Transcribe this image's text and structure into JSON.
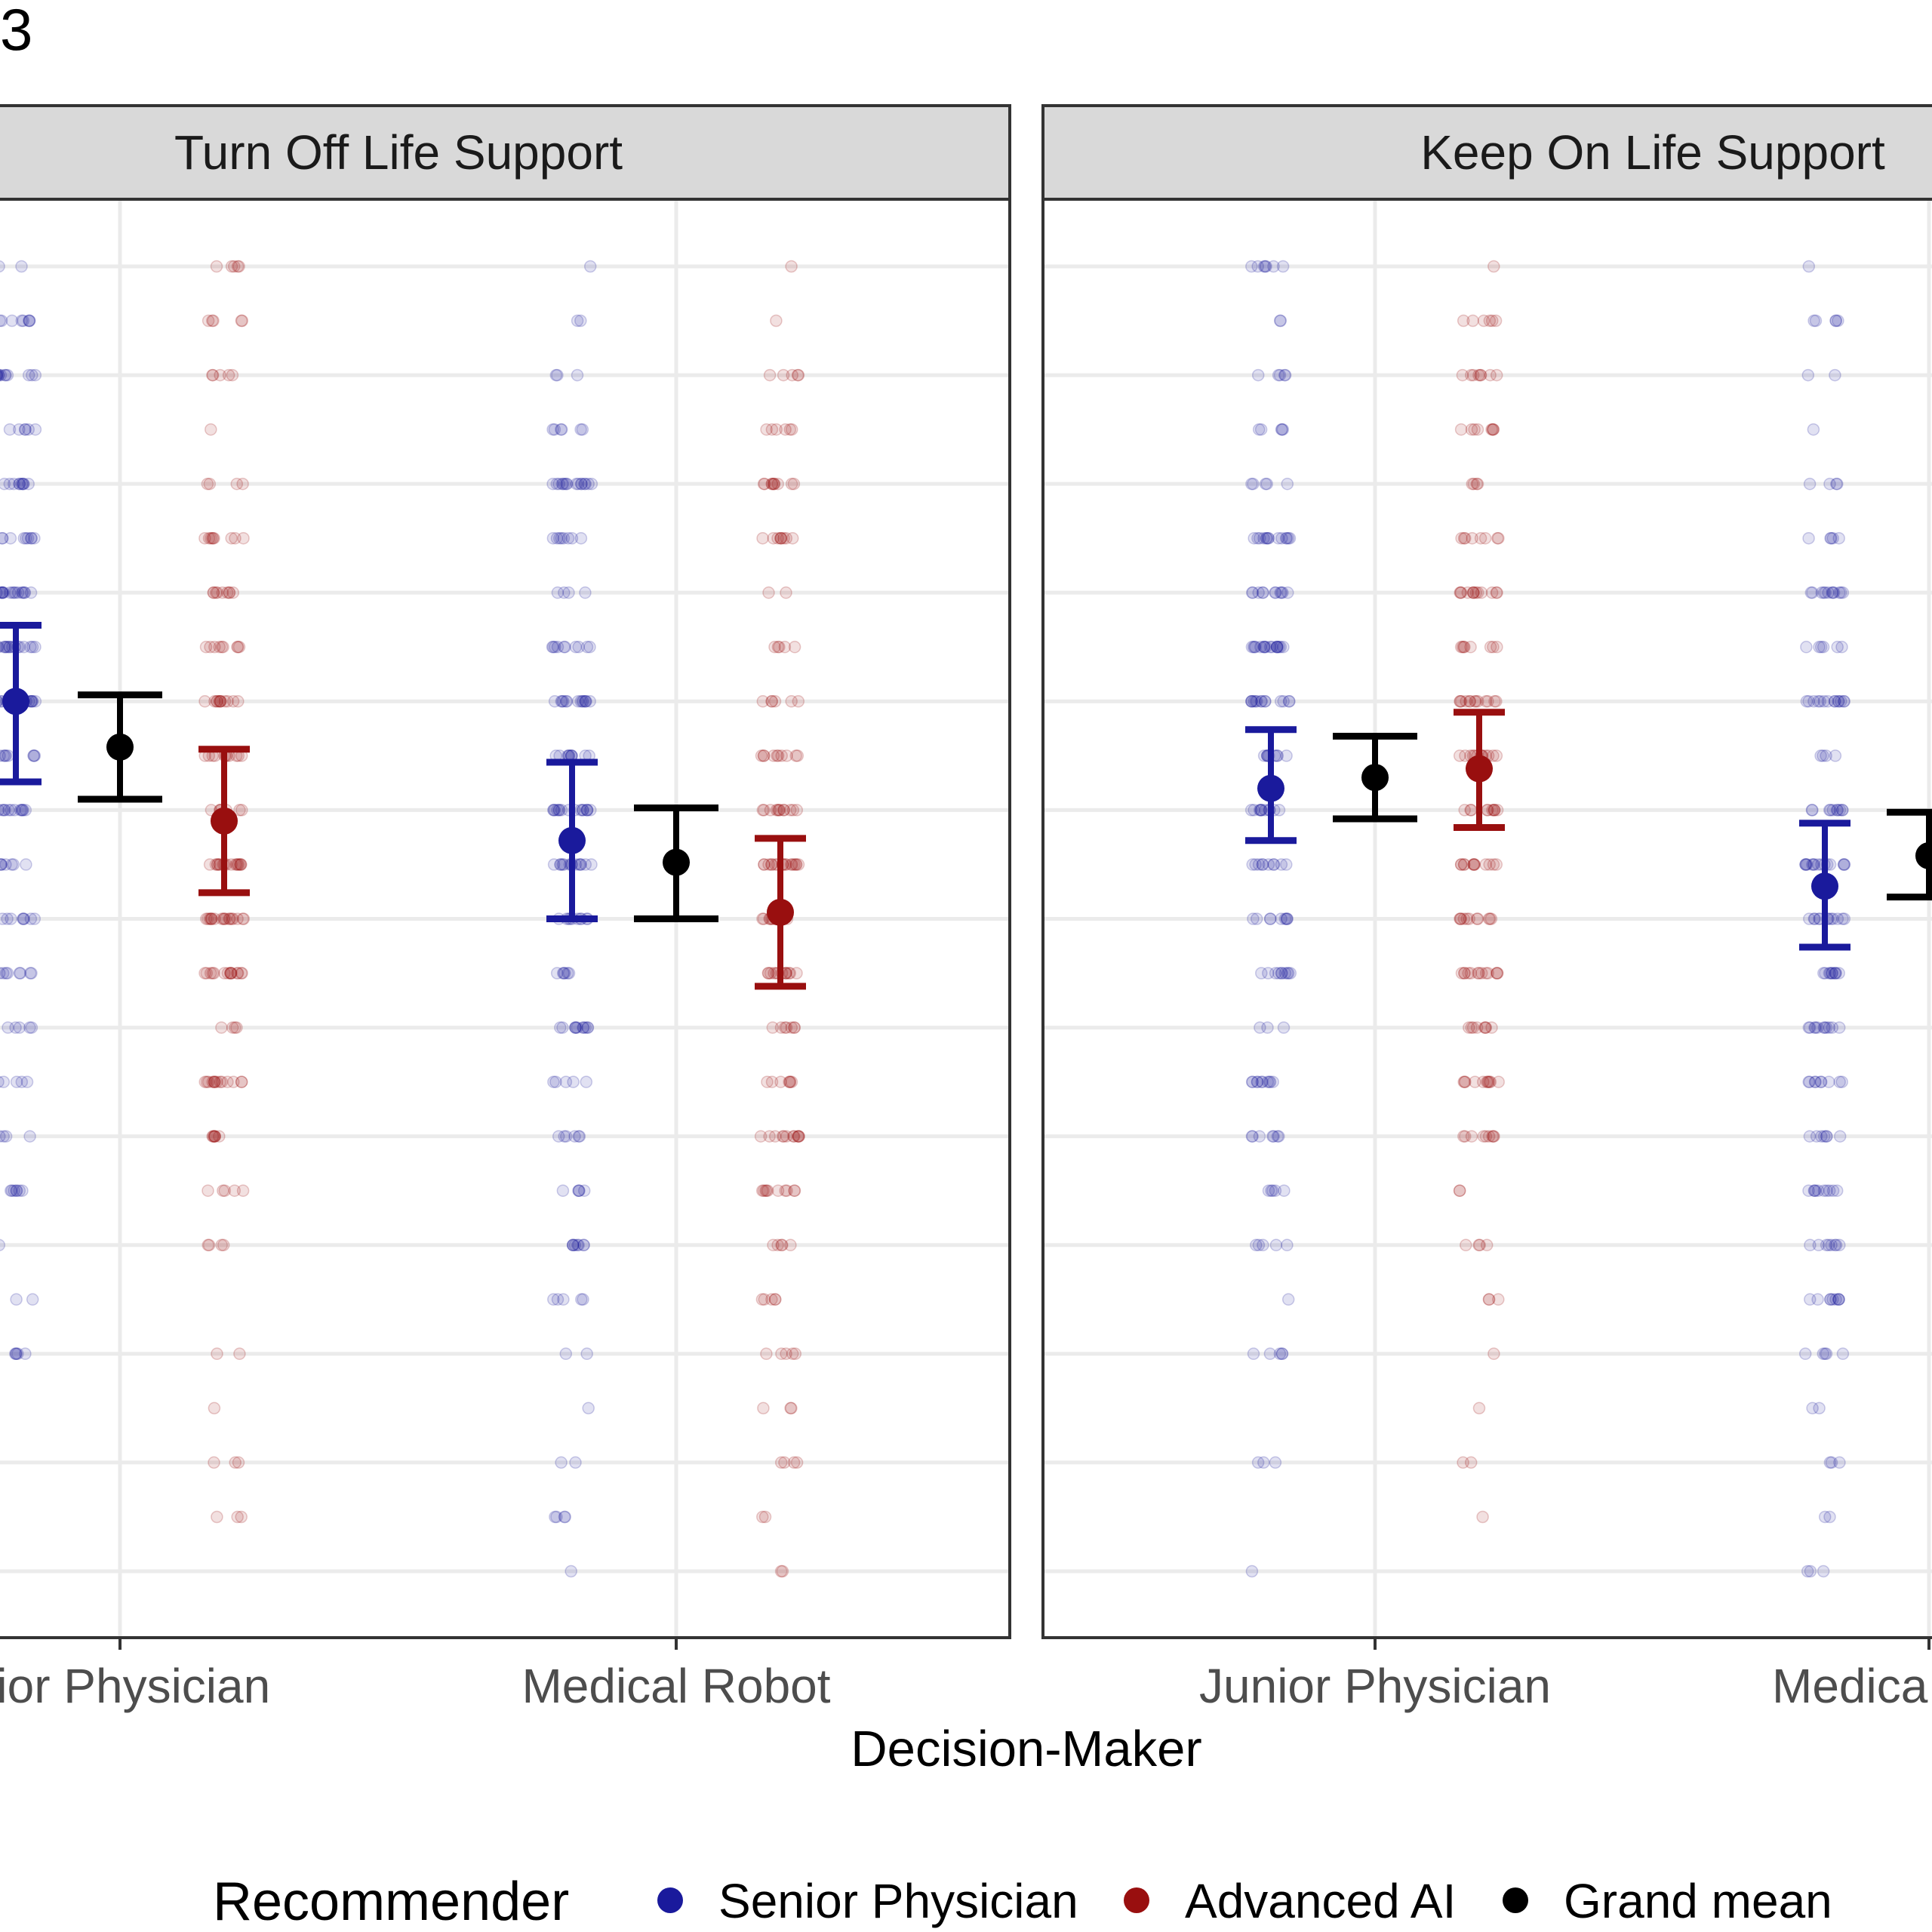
{
  "figure": {
    "corner_label": "3"
  },
  "chart_data": {
    "type": "scatter",
    "xlabel": "Decision-Maker",
    "ylabel": "",
    "ylim": [
      0,
      6
    ],
    "grid": true,
    "legend": {
      "title": "Recommender",
      "position": "bottom",
      "entries": [
        {
          "label": "Senior Physician",
          "color": "#1a1a9c"
        },
        {
          "label": "Advanced AI",
          "color": "#990f0f"
        },
        {
          "label": "Grand mean",
          "color": "#000000"
        }
      ]
    },
    "panels": [
      {
        "title": "Turn Off Life Support",
        "categories": [
          "Junior Physician",
          "Medical Robot"
        ],
        "category_tick_labels": [
          "nior Physician",
          "Medical Robot"
        ],
        "summaries": [
          {
            "category": "Junior Physician",
            "senior_physician": {
              "mean": 4.0,
              "ci": [
                3.63,
                4.35
              ]
            },
            "grand_mean": {
              "mean": 3.79,
              "ci": [
                3.55,
                4.03
              ]
            },
            "advanced_ai": {
              "mean": 3.45,
              "ci": [
                3.12,
                3.78
              ]
            }
          },
          {
            "category": "Medical Robot",
            "senior_physician": {
              "mean": 3.36,
              "ci": [
                3.0,
                3.72
              ]
            },
            "grand_mean": {
              "mean": 3.26,
              "ci": [
                3.0,
                3.51
              ]
            },
            "advanced_ai": {
              "mean": 3.03,
              "ci": [
                2.69,
                3.37
              ]
            }
          }
        ]
      },
      {
        "title": "Keep On Life Support",
        "categories": [
          "Junior Physician",
          "Medical Robot"
        ],
        "category_tick_labels": [
          "Junior Physician",
          "Medica"
        ],
        "summaries": [
          {
            "category": "Junior Physician",
            "senior_physician": {
              "mean": 3.6,
              "ci": [
                3.36,
                3.87
              ]
            },
            "grand_mean": {
              "mean": 3.65,
              "ci": [
                3.46,
                3.84
              ]
            },
            "advanced_ai": {
              "mean": 3.69,
              "ci": [
                3.42,
                3.95
              ]
            }
          },
          {
            "category": "Medical Robot",
            "senior_physician": {
              "mean": 3.15,
              "ci": [
                2.87,
                3.44
              ]
            },
            "grand_mean": {
              "mean": 3.29,
              "ci": [
                3.1,
                3.49
              ]
            },
            "advanced_ai": null
          }
        ]
      }
    ]
  }
}
